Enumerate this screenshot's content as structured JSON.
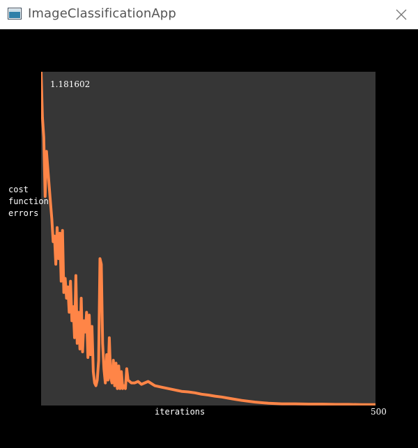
{
  "window": {
    "title": "ImageClassificationApp",
    "close_icon": "close-icon",
    "app_icon": "app-window-icon"
  },
  "chart_data": {
    "type": "line",
    "top_value_label": "1.181602",
    "ylabel_lines": [
      "cost",
      "function",
      "errors"
    ],
    "xlabel": "iterations",
    "x_max_label": "500",
    "xlim": [
      0,
      500
    ],
    "ylim": [
      0,
      1.181602
    ],
    "line_color": "#ff8547",
    "plot_background": "#363636",
    "series": [
      {
        "x": [
          0,
          2,
          4,
          6,
          8,
          10,
          12,
          14,
          16,
          18,
          20,
          22,
          24,
          26,
          28,
          30,
          32,
          34,
          36,
          38,
          40,
          42,
          44,
          46,
          48,
          50,
          52,
          54,
          56,
          58,
          60,
          62,
          64,
          66,
          68,
          70,
          72,
          74,
          76,
          78,
          80,
          82,
          84,
          86,
          88,
          90,
          92,
          94,
          96,
          98,
          100,
          102,
          104,
          106,
          108,
          110,
          112,
          114,
          116,
          118,
          120,
          122,
          124,
          126,
          128,
          130,
          135,
          140,
          145,
          150,
          160,
          170,
          180,
          190,
          200,
          210,
          220,
          230,
          240,
          250,
          260,
          270,
          280,
          290,
          300,
          320,
          340,
          360,
          380,
          400,
          420,
          440,
          460,
          480,
          500
        ],
        "y": [
          1.18,
          1.02,
          0.95,
          0.74,
          0.9,
          0.84,
          0.78,
          0.72,
          0.66,
          0.58,
          0.6,
          0.5,
          0.63,
          0.52,
          0.61,
          0.44,
          0.62,
          0.4,
          0.45,
          0.38,
          0.42,
          0.33,
          0.44,
          0.3,
          0.35,
          0.24,
          0.46,
          0.22,
          0.33,
          0.2,
          0.38,
          0.19,
          0.3,
          0.26,
          0.33,
          0.17,
          0.32,
          0.18,
          0.28,
          0.12,
          0.08,
          0.07,
          0.09,
          0.16,
          0.52,
          0.5,
          0.22,
          0.13,
          0.08,
          0.18,
          0.09,
          0.24,
          0.1,
          0.08,
          0.16,
          0.07,
          0.15,
          0.06,
          0.14,
          0.06,
          0.12,
          0.06,
          0.07,
          0.06,
          0.13,
          0.09,
          0.08,
          0.08,
          0.085,
          0.075,
          0.085,
          0.07,
          0.065,
          0.06,
          0.055,
          0.05,
          0.048,
          0.045,
          0.04,
          0.037,
          0.033,
          0.03,
          0.026,
          0.022,
          0.018,
          0.012,
          0.008,
          0.006,
          0.006,
          0.005,
          0.005,
          0.004,
          0.004,
          0.003,
          0.003
        ]
      }
    ]
  }
}
